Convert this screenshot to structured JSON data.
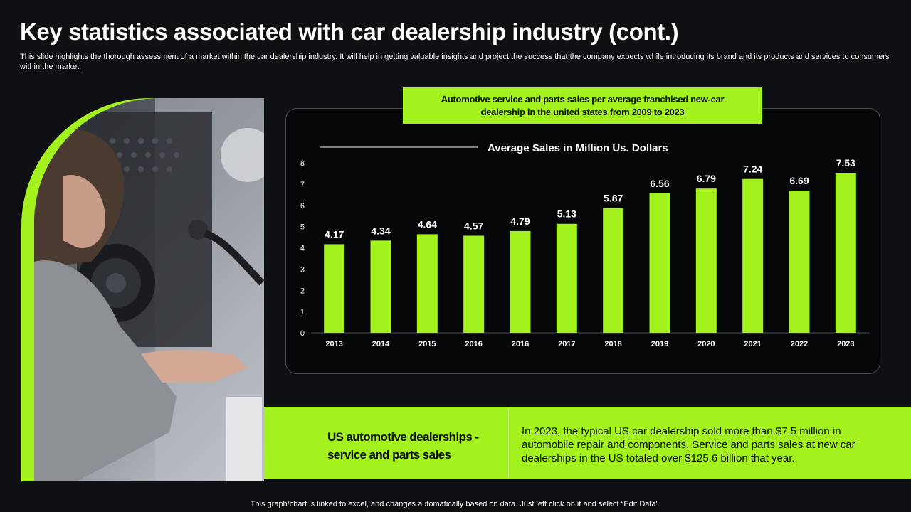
{
  "page": {
    "title": "Key statistics associated with car dealership industry (cont.)",
    "subtitle": "This slide highlights the thorough assessment of a market within the car dealership industry. It will help in getting valuable insights and project the success that the company expects while introducing its brand and its products and services to consumers within the market.",
    "footer": "This graph/chart is linked to excel,  and changes automatically based on data. Just left click on it and select “Edit Data”."
  },
  "chart_header": "Automotive service and parts sales per average franchised new-car dealership in the united states from 2009 to 2023",
  "info": {
    "heading": "US automotive dealerships - service and parts sales",
    "body": "In 2023, the typical US car dealership sold more than $7.5 million in automobile repair and components.  Service and parts sales at new car dealerships in the US totaled over $125.6 billion that year."
  },
  "colors": {
    "accent": "#a3f21d",
    "background": "#0e1014",
    "chart_background": "#050608",
    "text": "#ffffff"
  },
  "chart_data": {
    "type": "bar",
    "title": "Average Sales in Million Us. Dollars",
    "categories": [
      "2013",
      "2014",
      "2015",
      "2016",
      "2016",
      "2017",
      "2018",
      "2019",
      "2020",
      "2021",
      "2022",
      "2023"
    ],
    "values": [
      4.17,
      4.34,
      4.64,
      4.57,
      4.79,
      5.13,
      5.87,
      6.56,
      6.79,
      7.24,
      6.69,
      7.53
    ],
    "value_labels": [
      "4.17",
      "4.34",
      "4.64",
      "4.57",
      "4.79",
      "5.13",
      "5.87",
      "6.56",
      "6.79",
      "7.24",
      "6.69",
      "7.53"
    ],
    "yticks": [
      "0",
      "1",
      "2",
      "3",
      "4",
      "5",
      "6",
      "7",
      "8"
    ],
    "ylim": [
      0,
      8
    ],
    "xlabel": "",
    "ylabel": "",
    "grid": false,
    "legend": "none"
  }
}
